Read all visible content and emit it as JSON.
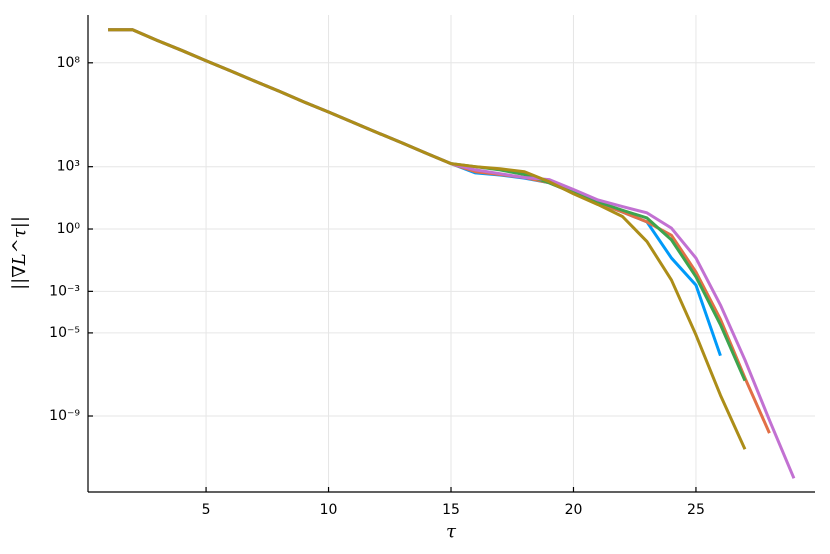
{
  "chart_data": {
    "type": "line",
    "xlabel": "τ",
    "ylabel": "||∇L^τ||",
    "x": [
      1,
      2,
      3,
      4,
      5,
      6,
      7,
      8,
      9,
      10,
      11,
      12,
      13,
      14,
      15,
      16,
      17,
      18,
      19,
      20,
      21,
      22,
      23,
      24,
      25,
      26,
      27,
      28,
      29
    ],
    "series": [
      {
        "color": "#009af9",
        "values": [
          3900000000.0,
          3900000000.0,
          1200000000.0,
          400000000.0,
          126000000.0,
          41000000.0,
          13000000.0,
          4200000.0,
          1300000.0,
          430000.0,
          135000.0,
          43000.0,
          14000.0,
          4400.0,
          1400.0,
          500,
          400,
          280,
          170,
          56,
          18,
          6.6,
          2.2,
          0.04,
          0.002,
          8e-07,
          null,
          null,
          null
        ]
      },
      {
        "color": "#e26f46",
        "values": [
          3900000000.0,
          3900000000.0,
          1200000000.0,
          400000000.0,
          126000000.0,
          41000000.0,
          13000000.0,
          4200000.0,
          1300000.0,
          430000.0,
          135000.0,
          43000.0,
          14000.0,
          4400.0,
          1400.0,
          570,
          420,
          300,
          170,
          56,
          18,
          6.6,
          2.2,
          0.5,
          0.0085,
          4.5e-05,
          6.8e-08,
          1.5e-10,
          null
        ]
      },
      {
        "color": "#3da44d",
        "values": [
          3900000000.0,
          3900000000.0,
          1200000000.0,
          400000000.0,
          126000000.0,
          41000000.0,
          13000000.0,
          4200000.0,
          1300000.0,
          430000.0,
          135000.0,
          43000.0,
          14000.0,
          4400.0,
          1400.0,
          1000,
          700,
          420,
          170,
          56,
          20,
          8,
          3.4,
          0.3,
          0.005,
          2.5e-05,
          5e-08,
          null,
          null
        ]
      },
      {
        "color": "#c271d2",
        "values": [
          3900000000.0,
          3900000000.0,
          1200000000.0,
          400000000.0,
          126000000.0,
          41000000.0,
          13000000.0,
          4200000.0,
          1300000.0,
          430000.0,
          135000.0,
          43000.0,
          14000.0,
          4400.0,
          1400.0,
          700,
          460,
          300,
          240,
          80,
          25,
          12,
          6,
          1.1,
          0.04,
          0.00022,
          5e-07,
          6.3e-10,
          1e-12
        ]
      },
      {
        "color": "#ac8d18",
        "values": [
          3900000000.0,
          3900000000.0,
          1200000000.0,
          400000000.0,
          126000000.0,
          41000000.0,
          13000000.0,
          4200000.0,
          1300000.0,
          430000.0,
          135000.0,
          43000.0,
          14000.0,
          4400.0,
          1400.0,
          1000,
          800,
          570,
          190,
          50,
          15,
          4,
          0.25,
          0.0035,
          8e-06,
          1e-08,
          2.5e-11,
          null,
          null
        ]
      }
    ],
    "xlim": [
      0.18,
      29.86
    ],
    "xticks": [
      5,
      10,
      15,
      20,
      25
    ],
    "ylim": [
      20000000000.0,
      2.2e-13
    ],
    "ylog": true,
    "yticks": [
      {
        "value": 100000000.0,
        "label": "10⁸"
      },
      {
        "value": 1000,
        "label": "10³"
      },
      {
        "value": 1,
        "label": "10⁰"
      },
      {
        "value": 0.001,
        "label": "10⁻³"
      },
      {
        "value": 1e-05,
        "label": "10⁻⁵"
      },
      {
        "value": 1e-09,
        "label": "10⁻⁹"
      }
    ],
    "grid": true
  }
}
